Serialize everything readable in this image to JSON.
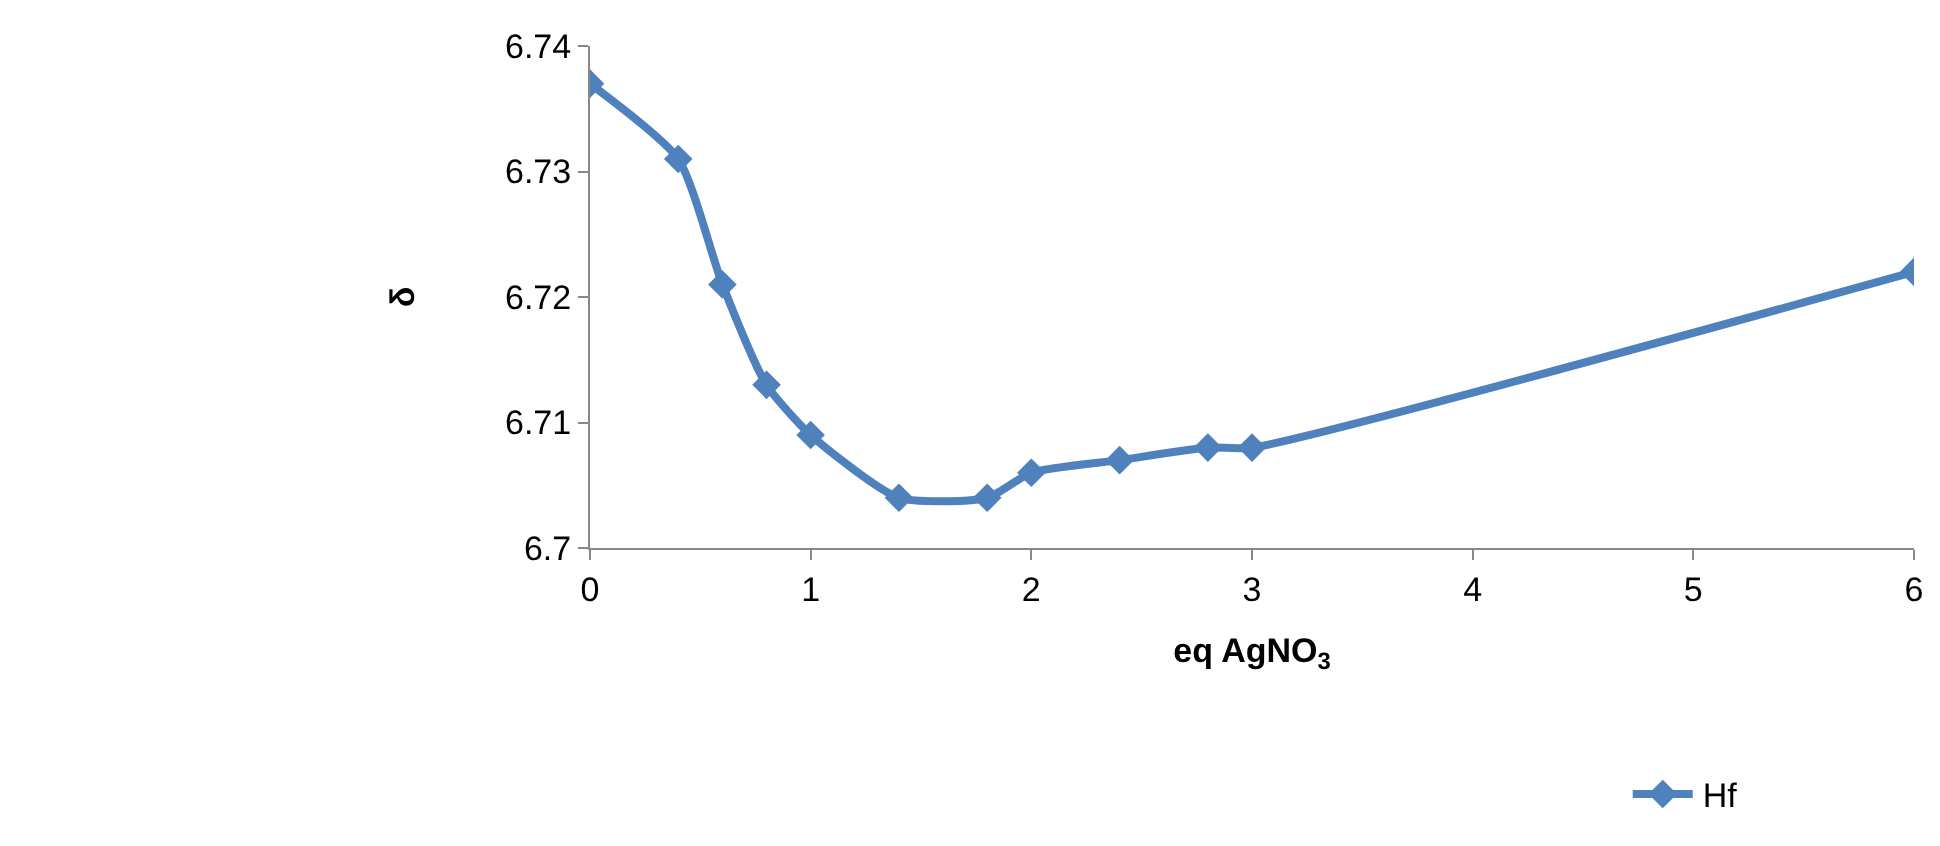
{
  "chart_data": {
    "type": "line",
    "xlabel": "eq AgNO$_{3}$",
    "ylabel": "δ",
    "x": [
      0,
      0.4,
      0.6,
      0.8,
      1.0,
      1.4,
      1.8,
      2.0,
      2.4,
      2.8,
      3.0,
      6
    ],
    "series": [
      {
        "name": "Hf",
        "color": "#4f81bd",
        "values": [
          6.737,
          6.731,
          6.721,
          6.713,
          6.709,
          6.704,
          6.704,
          6.706,
          6.707,
          6.708,
          6.708,
          6.722
        ]
      }
    ],
    "xlim": [
      0,
      6
    ],
    "xticks": [
      0,
      1,
      2,
      3,
      4,
      5,
      6
    ],
    "ylim": [
      6.7,
      6.74
    ],
    "yticks": [
      6.7,
      6.71,
      6.72,
      6.73,
      6.74
    ],
    "legend": "bottom right",
    "marker": "diamond",
    "line_style": "solid"
  }
}
